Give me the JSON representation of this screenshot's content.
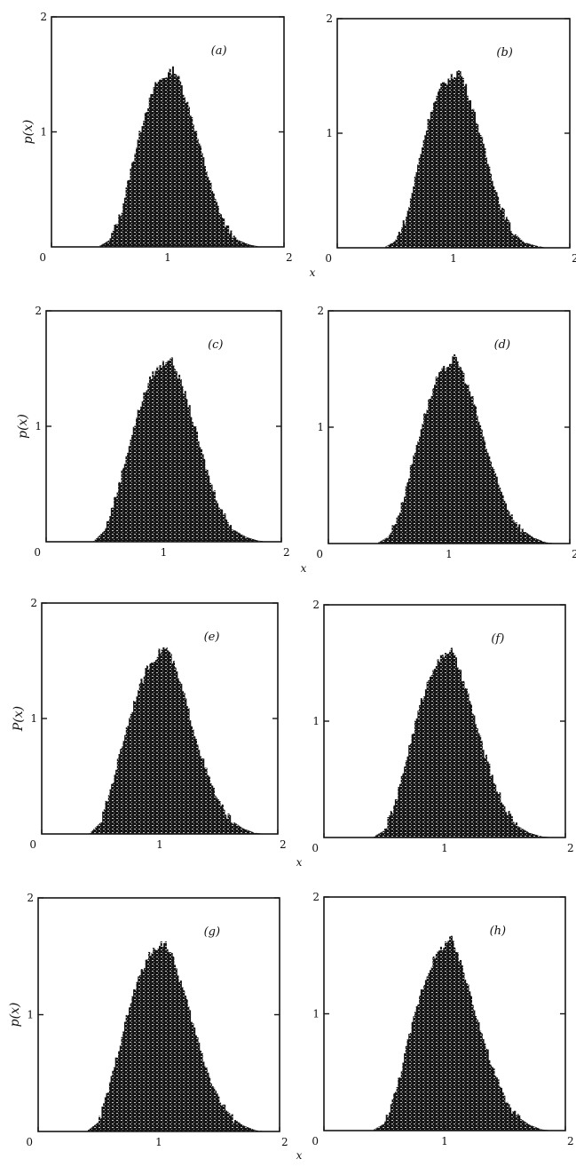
{
  "figure": {
    "ylabel": "p(x)",
    "xlabel": "x",
    "colors": {
      "ink": "#161616",
      "speckle": "#f4f4f4",
      "paper": "#ffffff"
    }
  },
  "chart_data": [
    {
      "type": "bar",
      "panel_label": "(a)",
      "ylabel": "p(x)",
      "xlabel": "",
      "xlim": [
        0,
        2
      ],
      "ylim": [
        0,
        2
      ],
      "grid": false,
      "x_tick_labels": [
        "0",
        "1",
        "2"
      ],
      "y_tick_labels": [
        "1",
        "2"
      ],
      "x": [
        0.4,
        0.5,
        0.6,
        0.7,
        0.8,
        0.9,
        1.0,
        1.05,
        1.1,
        1.2,
        1.3,
        1.4,
        1.5,
        1.6,
        1.7,
        1.8
      ],
      "values": [
        0.0,
        0.06,
        0.3,
        0.75,
        1.15,
        1.42,
        1.5,
        1.55,
        1.45,
        1.15,
        0.78,
        0.42,
        0.18,
        0.06,
        0.02,
        0.0
      ]
    },
    {
      "type": "bar",
      "panel_label": "(b)",
      "ylabel": "",
      "xlabel": "x",
      "xlim": [
        0,
        2
      ],
      "ylim": [
        0,
        2
      ],
      "grid": false,
      "x_tick_labels": [
        "0",
        "1",
        "2"
      ],
      "y_tick_labels": [
        "1",
        "2"
      ],
      "x": [
        0.4,
        0.5,
        0.6,
        0.7,
        0.8,
        0.9,
        1.0,
        1.05,
        1.1,
        1.2,
        1.3,
        1.4,
        1.5,
        1.6,
        1.7,
        1.8
      ],
      "values": [
        0.0,
        0.06,
        0.28,
        0.75,
        1.18,
        1.42,
        1.5,
        1.55,
        1.42,
        1.1,
        0.72,
        0.38,
        0.15,
        0.05,
        0.02,
        0.0
      ]
    },
    {
      "type": "bar",
      "panel_label": "(c)",
      "ylabel": "p(x)",
      "xlabel": "",
      "xlim": [
        0,
        2
      ],
      "ylim": [
        0,
        2
      ],
      "grid": false,
      "x_tick_labels": [
        "0",
        "1",
        "2"
      ],
      "y_tick_labels": [
        "1",
        "2"
      ],
      "x": [
        0.4,
        0.5,
        0.6,
        0.7,
        0.8,
        0.9,
        1.0,
        1.05,
        1.1,
        1.2,
        1.3,
        1.4,
        1.5,
        1.6,
        1.7,
        1.8,
        1.9
      ],
      "values": [
        0.0,
        0.1,
        0.42,
        0.82,
        1.18,
        1.45,
        1.55,
        1.6,
        1.5,
        1.22,
        0.85,
        0.5,
        0.25,
        0.1,
        0.04,
        0.01,
        0.0
      ]
    },
    {
      "type": "bar",
      "panel_label": "(d)",
      "ylabel": "",
      "xlabel": "x",
      "xlim": [
        0,
        2
      ],
      "ylim": [
        0,
        2
      ],
      "grid": false,
      "x_tick_labels": [
        "0",
        "1",
        "2"
      ],
      "y_tick_labels": [
        "1",
        "2"
      ],
      "x": [
        0.4,
        0.5,
        0.6,
        0.7,
        0.8,
        0.9,
        1.0,
        1.05,
        1.1,
        1.2,
        1.3,
        1.4,
        1.5,
        1.6,
        1.7,
        1.8,
        1.9
      ],
      "values": [
        0.0,
        0.06,
        0.3,
        0.72,
        1.12,
        1.42,
        1.55,
        1.6,
        1.5,
        1.22,
        0.85,
        0.52,
        0.27,
        0.12,
        0.05,
        0.01,
        0.0
      ]
    },
    {
      "type": "bar",
      "panel_label": "(e)",
      "ylabel": "P(x)",
      "xlabel": "",
      "xlim": [
        0,
        2
      ],
      "ylim": [
        0,
        2
      ],
      "grid": false,
      "x_tick_labels": [
        "0",
        "1",
        "2"
      ],
      "y_tick_labels": [
        "1",
        "2"
      ],
      "x": [
        0.4,
        0.5,
        0.6,
        0.7,
        0.8,
        0.9,
        1.0,
        1.05,
        1.1,
        1.2,
        1.3,
        1.4,
        1.5,
        1.6,
        1.7,
        1.8,
        1.9
      ],
      "values": [
        0.0,
        0.1,
        0.45,
        0.85,
        1.2,
        1.45,
        1.58,
        1.62,
        1.52,
        1.22,
        0.85,
        0.52,
        0.27,
        0.12,
        0.05,
        0.01,
        0.0
      ]
    },
    {
      "type": "bar",
      "panel_label": "(f)",
      "ylabel": "",
      "xlabel": "x",
      "xlim": [
        0,
        2
      ],
      "ylim": [
        0,
        2
      ],
      "grid": false,
      "x_tick_labels": [
        "0",
        "1",
        "2"
      ],
      "y_tick_labels": [
        "1",
        "2"
      ],
      "x": [
        0.4,
        0.5,
        0.6,
        0.7,
        0.8,
        0.9,
        1.0,
        1.05,
        1.1,
        1.2,
        1.3,
        1.4,
        1.5,
        1.6,
        1.7,
        1.8,
        1.9
      ],
      "values": [
        0.0,
        0.06,
        0.32,
        0.75,
        1.15,
        1.45,
        1.58,
        1.62,
        1.5,
        1.2,
        0.82,
        0.5,
        0.25,
        0.1,
        0.04,
        0.01,
        0.0
      ]
    },
    {
      "type": "bar",
      "panel_label": "(g)",
      "ylabel": "p(x)",
      "xlabel": "",
      "xlim": [
        0,
        2
      ],
      "ylim": [
        0,
        2
      ],
      "grid": false,
      "x_tick_labels": [
        "0",
        "1",
        "2"
      ],
      "y_tick_labels": [
        "1",
        "2"
      ],
      "x": [
        0.4,
        0.5,
        0.6,
        0.7,
        0.8,
        0.9,
        1.0,
        1.05,
        1.1,
        1.2,
        1.3,
        1.4,
        1.5,
        1.6,
        1.7,
        1.8,
        1.9
      ],
      "values": [
        0.0,
        0.08,
        0.42,
        0.85,
        1.22,
        1.48,
        1.6,
        1.62,
        1.52,
        1.22,
        0.85,
        0.52,
        0.27,
        0.12,
        0.05,
        0.01,
        0.0
      ]
    },
    {
      "type": "bar",
      "panel_label": "(h)",
      "ylabel": "",
      "xlabel": "x",
      "xlim": [
        0,
        2
      ],
      "ylim": [
        0,
        2
      ],
      "grid": false,
      "x_tick_labels": [
        "0",
        "1",
        "2"
      ],
      "y_tick_labels": [
        "1",
        "2"
      ],
      "x": [
        0.4,
        0.5,
        0.6,
        0.7,
        0.8,
        0.9,
        1.0,
        1.05,
        1.1,
        1.2,
        1.3,
        1.4,
        1.5,
        1.6,
        1.7,
        1.8,
        1.9
      ],
      "values": [
        0.0,
        0.06,
        0.35,
        0.78,
        1.18,
        1.45,
        1.6,
        1.65,
        1.52,
        1.22,
        0.85,
        0.52,
        0.27,
        0.12,
        0.05,
        0.01,
        0.0
      ]
    }
  ]
}
